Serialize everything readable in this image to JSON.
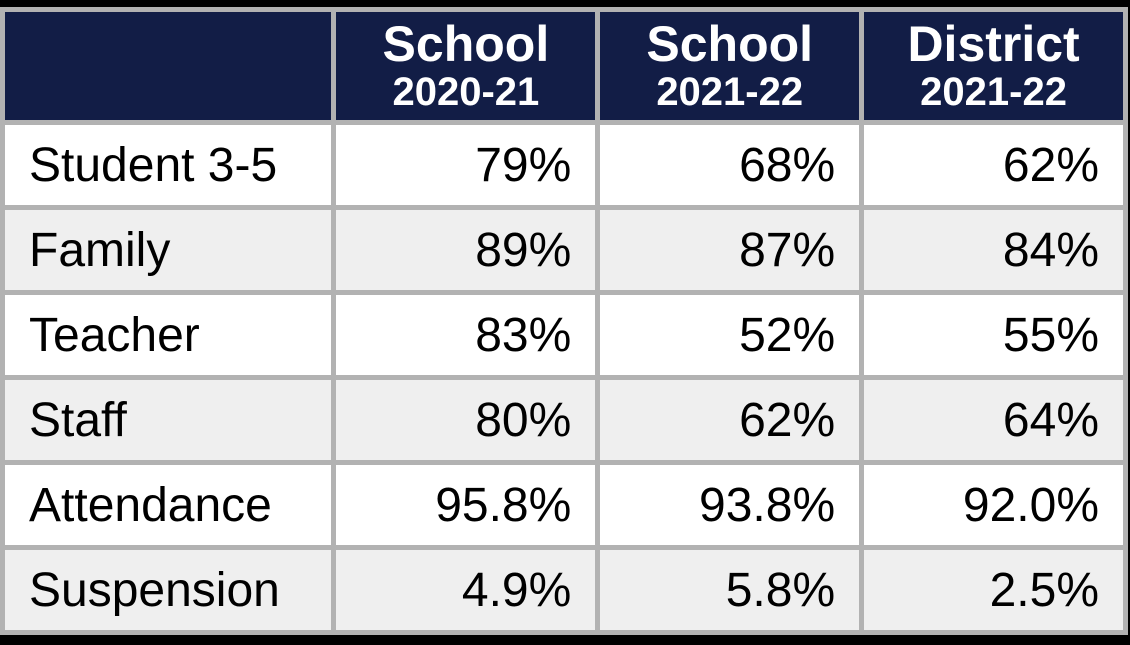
{
  "colors": {
    "frame": "#000000",
    "grid": "#b2b2b2",
    "header_bg": "#121d46",
    "header_text": "#ffffff",
    "row": "#ffffff",
    "row_alt": "#efefef",
    "body_text": "#000000"
  },
  "table": {
    "headers": [
      {
        "line1": "School",
        "line2": "2020-21"
      },
      {
        "line1": "School",
        "line2": "2021-22"
      },
      {
        "line1": "District",
        "line2": "2021-22"
      }
    ],
    "rows": [
      {
        "label": "Student 3-5",
        "values": [
          "79%",
          "68%",
          "62%"
        ]
      },
      {
        "label": "Family",
        "values": [
          "89%",
          "87%",
          "84%"
        ]
      },
      {
        "label": "Teacher",
        "values": [
          "83%",
          "52%",
          "55%"
        ]
      },
      {
        "label": "Staff",
        "values": [
          "80%",
          "62%",
          "64%"
        ]
      },
      {
        "label": "Attendance",
        "values": [
          "95.8%",
          "93.8%",
          "92.0%"
        ]
      },
      {
        "label": "Suspension",
        "values": [
          "4.9%",
          "5.8%",
          "2.5%"
        ]
      }
    ]
  },
  "chart_data": {
    "type": "table",
    "columns": [
      "",
      "School 2020-21",
      "School 2021-22",
      "District 2021-22"
    ],
    "rows": [
      [
        "Student 3-5",
        "79%",
        "68%",
        "62%"
      ],
      [
        "Family",
        "89%",
        "87%",
        "84%"
      ],
      [
        "Teacher",
        "83%",
        "52%",
        "55%"
      ],
      [
        "Staff",
        "80%",
        "62%",
        "64%"
      ],
      [
        "Attendance",
        "95.8%",
        "93.8%",
        "92.0%"
      ],
      [
        "Suspension",
        "4.9%",
        "5.8%",
        "2.5%"
      ]
    ]
  }
}
